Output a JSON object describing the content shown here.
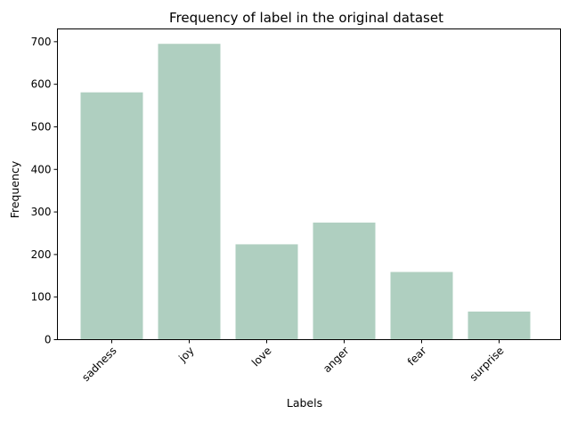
{
  "chart_data": {
    "type": "bar",
    "title": "Frequency of label in the original dataset",
    "xlabel": "Labels",
    "ylabel": "Frequency",
    "categories": [
      "sadness",
      "joy",
      "love",
      "anger",
      "fear",
      "surprise"
    ],
    "values": [
      581,
      695,
      224,
      275,
      159,
      66
    ],
    "ylim": [
      0,
      730
    ],
    "yticks": [
      0,
      100,
      200,
      300,
      400,
      500,
      600,
      700
    ],
    "xtick_rotation_deg": 45,
    "bar_color": "#afcfc0",
    "grid": false,
    "legend": "none"
  }
}
